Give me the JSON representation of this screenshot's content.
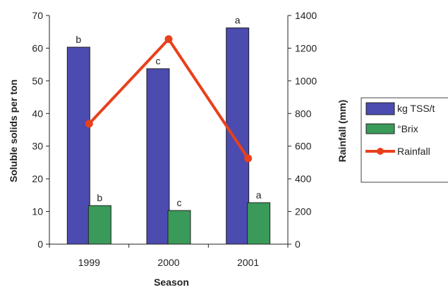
{
  "chart_data": {
    "type": "bar",
    "categories": [
      "1999",
      "2000",
      "2001"
    ],
    "xlabel": "Season",
    "ylabel": "Soluble solids per ton",
    "y2label": "Rainfall (mm)",
    "ylim": [
      0,
      70
    ],
    "y2lim": [
      0,
      1400
    ],
    "yticks": [
      0,
      10,
      20,
      30,
      40,
      50,
      60,
      70
    ],
    "y2ticks": [
      0,
      200,
      400,
      600,
      800,
      1000,
      1200,
      1400
    ],
    "grid": false,
    "legend_position": "right",
    "series": [
      {
        "name": "kg TSS/t",
        "kind": "bar",
        "axis": "left",
        "color": "#4b4bb0",
        "values": [
          60.3,
          53.7,
          66.2
        ],
        "labels": [
          "b",
          "c",
          "a"
        ]
      },
      {
        "name": "°Brix",
        "kind": "bar",
        "axis": "left",
        "color": "#3a9a5a",
        "values": [
          11.8,
          10.3,
          12.7
        ],
        "labels": [
          "b",
          "c",
          "a"
        ]
      },
      {
        "name": "Rainfall",
        "kind": "line",
        "axis": "right",
        "color": "#e8401c",
        "values": [
          737,
          1255,
          525
        ],
        "marker": "circle"
      }
    ]
  }
}
